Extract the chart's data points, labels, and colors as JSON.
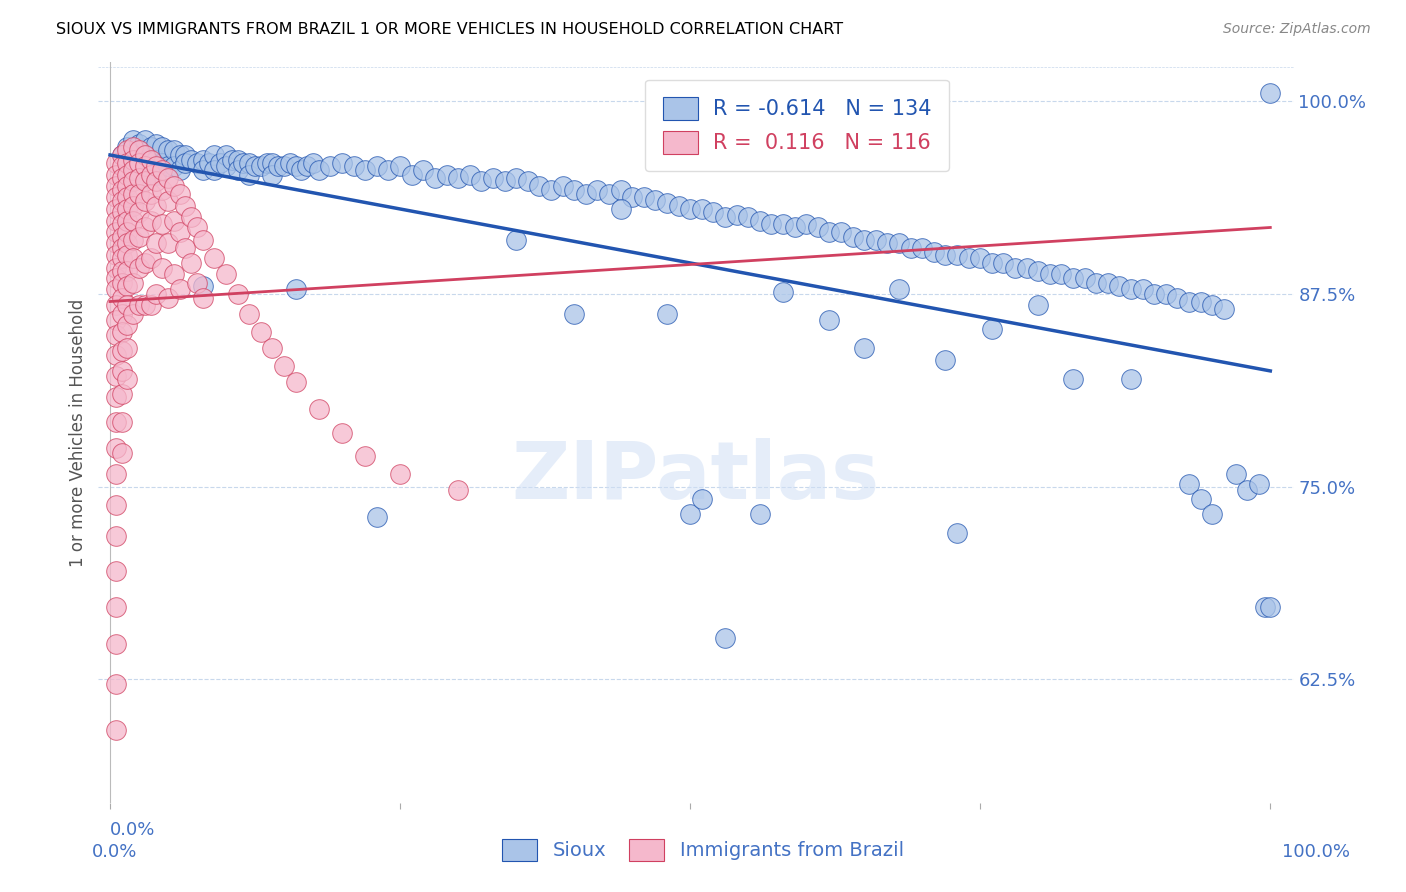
{
  "title": "SIOUX VS IMMIGRANTS FROM BRAZIL 1 OR MORE VEHICLES IN HOUSEHOLD CORRELATION CHART",
  "source": "Source: ZipAtlas.com",
  "ylabel": "1 or more Vehicles in Household",
  "legend_label1": "Sioux",
  "legend_label2": "Immigrants from Brazil",
  "R1": -0.614,
  "N1": 134,
  "R2": 0.116,
  "N2": 116,
  "watermark": "ZIPatlas",
  "xlim": [
    -0.01,
    1.02
  ],
  "ylim": [
    0.545,
    1.025
  ],
  "yticks": [
    0.625,
    0.75,
    0.875,
    1.0
  ],
  "ytick_labels": [
    "62.5%",
    "75.0%",
    "87.5%",
    "100.0%"
  ],
  "blue_color": "#aac4e8",
  "pink_color": "#f5b8cc",
  "trendline_blue": "#2255b0",
  "trendline_pink": "#d04060",
  "blue_scatter": [
    [
      0.01,
      0.965
    ],
    [
      0.015,
      0.97
    ],
    [
      0.02,
      0.975
    ],
    [
      0.02,
      0.96
    ],
    [
      0.025,
      0.972
    ],
    [
      0.025,
      0.958
    ],
    [
      0.03,
      0.975
    ],
    [
      0.03,
      0.965
    ],
    [
      0.03,
      0.95
    ],
    [
      0.035,
      0.97
    ],
    [
      0.035,
      0.96
    ],
    [
      0.04,
      0.972
    ],
    [
      0.04,
      0.962
    ],
    [
      0.04,
      0.952
    ],
    [
      0.045,
      0.97
    ],
    [
      0.045,
      0.96
    ],
    [
      0.05,
      0.968
    ],
    [
      0.05,
      0.958
    ],
    [
      0.055,
      0.968
    ],
    [
      0.055,
      0.958
    ],
    [
      0.06,
      0.965
    ],
    [
      0.06,
      0.955
    ],
    [
      0.065,
      0.965
    ],
    [
      0.065,
      0.96
    ],
    [
      0.07,
      0.962
    ],
    [
      0.075,
      0.96
    ],
    [
      0.08,
      0.962
    ],
    [
      0.08,
      0.955
    ],
    [
      0.085,
      0.96
    ],
    [
      0.09,
      0.965
    ],
    [
      0.09,
      0.955
    ],
    [
      0.095,
      0.96
    ],
    [
      0.1,
      0.965
    ],
    [
      0.1,
      0.958
    ],
    [
      0.105,
      0.962
    ],
    [
      0.11,
      0.962
    ],
    [
      0.11,
      0.955
    ],
    [
      0.115,
      0.96
    ],
    [
      0.12,
      0.96
    ],
    [
      0.12,
      0.952
    ],
    [
      0.125,
      0.958
    ],
    [
      0.13,
      0.958
    ],
    [
      0.135,
      0.96
    ],
    [
      0.14,
      0.96
    ],
    [
      0.14,
      0.952
    ],
    [
      0.145,
      0.958
    ],
    [
      0.15,
      0.958
    ],
    [
      0.155,
      0.96
    ],
    [
      0.16,
      0.958
    ],
    [
      0.165,
      0.955
    ],
    [
      0.17,
      0.958
    ],
    [
      0.175,
      0.96
    ],
    [
      0.18,
      0.955
    ],
    [
      0.19,
      0.958
    ],
    [
      0.2,
      0.96
    ],
    [
      0.21,
      0.958
    ],
    [
      0.22,
      0.955
    ],
    [
      0.23,
      0.958
    ],
    [
      0.24,
      0.955
    ],
    [
      0.25,
      0.958
    ],
    [
      0.26,
      0.952
    ],
    [
      0.27,
      0.955
    ],
    [
      0.28,
      0.95
    ],
    [
      0.29,
      0.952
    ],
    [
      0.3,
      0.95
    ],
    [
      0.31,
      0.952
    ],
    [
      0.32,
      0.948
    ],
    [
      0.33,
      0.95
    ],
    [
      0.34,
      0.948
    ],
    [
      0.35,
      0.95
    ],
    [
      0.36,
      0.948
    ],
    [
      0.37,
      0.945
    ],
    [
      0.38,
      0.942
    ],
    [
      0.39,
      0.945
    ],
    [
      0.4,
      0.942
    ],
    [
      0.41,
      0.94
    ],
    [
      0.42,
      0.942
    ],
    [
      0.43,
      0.94
    ],
    [
      0.44,
      0.942
    ],
    [
      0.45,
      0.938
    ],
    [
      0.46,
      0.938
    ],
    [
      0.47,
      0.936
    ],
    [
      0.48,
      0.934
    ],
    [
      0.49,
      0.932
    ],
    [
      0.5,
      0.93
    ],
    [
      0.51,
      0.93
    ],
    [
      0.52,
      0.928
    ],
    [
      0.53,
      0.925
    ],
    [
      0.54,
      0.926
    ],
    [
      0.55,
      0.925
    ],
    [
      0.56,
      0.922
    ],
    [
      0.57,
      0.92
    ],
    [
      0.58,
      0.92
    ],
    [
      0.59,
      0.918
    ],
    [
      0.6,
      0.92
    ],
    [
      0.61,
      0.918
    ],
    [
      0.62,
      0.915
    ],
    [
      0.63,
      0.915
    ],
    [
      0.64,
      0.912
    ],
    [
      0.65,
      0.91
    ],
    [
      0.66,
      0.91
    ],
    [
      0.67,
      0.908
    ],
    [
      0.68,
      0.908
    ],
    [
      0.69,
      0.905
    ],
    [
      0.7,
      0.905
    ],
    [
      0.71,
      0.902
    ],
    [
      0.72,
      0.9
    ],
    [
      0.73,
      0.9
    ],
    [
      0.74,
      0.898
    ],
    [
      0.75,
      0.898
    ],
    [
      0.76,
      0.895
    ],
    [
      0.77,
      0.895
    ],
    [
      0.78,
      0.892
    ],
    [
      0.79,
      0.892
    ],
    [
      0.8,
      0.89
    ],
    [
      0.81,
      0.888
    ],
    [
      0.82,
      0.888
    ],
    [
      0.83,
      0.885
    ],
    [
      0.84,
      0.885
    ],
    [
      0.85,
      0.882
    ],
    [
      0.86,
      0.882
    ],
    [
      0.87,
      0.88
    ],
    [
      0.88,
      0.878
    ],
    [
      0.89,
      0.878
    ],
    [
      0.9,
      0.875
    ],
    [
      0.91,
      0.875
    ],
    [
      0.92,
      0.872
    ],
    [
      0.93,
      0.87
    ],
    [
      0.94,
      0.87
    ],
    [
      0.95,
      0.868
    ],
    [
      0.96,
      0.865
    ],
    [
      0.08,
      0.88
    ],
    [
      0.16,
      0.878
    ],
    [
      0.23,
      0.73
    ],
    [
      0.35,
      0.91
    ],
    [
      0.4,
      0.862
    ],
    [
      0.44,
      0.93
    ],
    [
      0.48,
      0.862
    ],
    [
      0.5,
      0.732
    ],
    [
      0.51,
      0.742
    ],
    [
      0.53,
      0.652
    ],
    [
      0.56,
      0.732
    ],
    [
      0.58,
      0.876
    ],
    [
      0.62,
      0.858
    ],
    [
      0.65,
      0.84
    ],
    [
      0.68,
      0.878
    ],
    [
      0.72,
      0.832
    ],
    [
      0.73,
      0.72
    ],
    [
      0.76,
      0.852
    ],
    [
      0.8,
      0.868
    ],
    [
      0.83,
      0.82
    ],
    [
      0.88,
      0.82
    ],
    [
      0.93,
      0.752
    ],
    [
      0.94,
      0.742
    ],
    [
      0.95,
      0.732
    ],
    [
      0.97,
      0.758
    ],
    [
      0.98,
      0.748
    ],
    [
      0.99,
      0.752
    ],
    [
      0.995,
      0.672
    ],
    [
      1.0,
      0.672
    ],
    [
      1.0,
      1.005
    ]
  ],
  "pink_scatter": [
    [
      0.005,
      0.96
    ],
    [
      0.005,
      0.952
    ],
    [
      0.005,
      0.945
    ],
    [
      0.005,
      0.938
    ],
    [
      0.005,
      0.93
    ],
    [
      0.005,
      0.922
    ],
    [
      0.005,
      0.915
    ],
    [
      0.005,
      0.908
    ],
    [
      0.005,
      0.9
    ],
    [
      0.005,
      0.892
    ],
    [
      0.005,
      0.885
    ],
    [
      0.005,
      0.878
    ],
    [
      0.005,
      0.868
    ],
    [
      0.005,
      0.858
    ],
    [
      0.005,
      0.848
    ],
    [
      0.005,
      0.835
    ],
    [
      0.005,
      0.822
    ],
    [
      0.005,
      0.808
    ],
    [
      0.005,
      0.792
    ],
    [
      0.005,
      0.775
    ],
    [
      0.005,
      0.758
    ],
    [
      0.005,
      0.738
    ],
    [
      0.005,
      0.718
    ],
    [
      0.005,
      0.695
    ],
    [
      0.005,
      0.672
    ],
    [
      0.005,
      0.648
    ],
    [
      0.005,
      0.622
    ],
    [
      0.005,
      0.592
    ],
    [
      0.01,
      0.965
    ],
    [
      0.01,
      0.958
    ],
    [
      0.01,
      0.95
    ],
    [
      0.01,
      0.942
    ],
    [
      0.01,
      0.935
    ],
    [
      0.01,
      0.928
    ],
    [
      0.01,
      0.92
    ],
    [
      0.01,
      0.912
    ],
    [
      0.01,
      0.905
    ],
    [
      0.01,
      0.898
    ],
    [
      0.01,
      0.89
    ],
    [
      0.01,
      0.882
    ],
    [
      0.01,
      0.872
    ],
    [
      0.01,
      0.862
    ],
    [
      0.01,
      0.85
    ],
    [
      0.01,
      0.838
    ],
    [
      0.01,
      0.825
    ],
    [
      0.01,
      0.81
    ],
    [
      0.01,
      0.792
    ],
    [
      0.01,
      0.772
    ],
    [
      0.015,
      0.968
    ],
    [
      0.015,
      0.96
    ],
    [
      0.015,
      0.952
    ],
    [
      0.015,
      0.945
    ],
    [
      0.015,
      0.938
    ],
    [
      0.015,
      0.93
    ],
    [
      0.015,
      0.922
    ],
    [
      0.015,
      0.915
    ],
    [
      0.015,
      0.908
    ],
    [
      0.015,
      0.9
    ],
    [
      0.015,
      0.89
    ],
    [
      0.015,
      0.88
    ],
    [
      0.015,
      0.868
    ],
    [
      0.015,
      0.855
    ],
    [
      0.015,
      0.84
    ],
    [
      0.015,
      0.82
    ],
    [
      0.02,
      0.97
    ],
    [
      0.02,
      0.962
    ],
    [
      0.02,
      0.955
    ],
    [
      0.02,
      0.948
    ],
    [
      0.02,
      0.94
    ],
    [
      0.02,
      0.932
    ],
    [
      0.02,
      0.922
    ],
    [
      0.02,
      0.91
    ],
    [
      0.02,
      0.898
    ],
    [
      0.02,
      0.882
    ],
    [
      0.02,
      0.862
    ],
    [
      0.025,
      0.968
    ],
    [
      0.025,
      0.96
    ],
    [
      0.025,
      0.95
    ],
    [
      0.025,
      0.94
    ],
    [
      0.025,
      0.928
    ],
    [
      0.025,
      0.912
    ],
    [
      0.025,
      0.892
    ],
    [
      0.025,
      0.868
    ],
    [
      0.03,
      0.965
    ],
    [
      0.03,
      0.958
    ],
    [
      0.03,
      0.948
    ],
    [
      0.03,
      0.935
    ],
    [
      0.03,
      0.918
    ],
    [
      0.03,
      0.895
    ],
    [
      0.03,
      0.868
    ],
    [
      0.035,
      0.962
    ],
    [
      0.035,
      0.952
    ],
    [
      0.035,
      0.94
    ],
    [
      0.035,
      0.922
    ],
    [
      0.035,
      0.898
    ],
    [
      0.035,
      0.868
    ],
    [
      0.04,
      0.958
    ],
    [
      0.04,
      0.948
    ],
    [
      0.04,
      0.932
    ],
    [
      0.04,
      0.908
    ],
    [
      0.04,
      0.875
    ],
    [
      0.045,
      0.955
    ],
    [
      0.045,
      0.942
    ],
    [
      0.045,
      0.92
    ],
    [
      0.045,
      0.892
    ],
    [
      0.05,
      0.95
    ],
    [
      0.05,
      0.935
    ],
    [
      0.05,
      0.908
    ],
    [
      0.05,
      0.872
    ],
    [
      0.055,
      0.945
    ],
    [
      0.055,
      0.922
    ],
    [
      0.055,
      0.888
    ],
    [
      0.06,
      0.94
    ],
    [
      0.06,
      0.915
    ],
    [
      0.06,
      0.878
    ],
    [
      0.065,
      0.932
    ],
    [
      0.065,
      0.905
    ],
    [
      0.07,
      0.925
    ],
    [
      0.07,
      0.895
    ],
    [
      0.075,
      0.918
    ],
    [
      0.075,
      0.882
    ],
    [
      0.08,
      0.91
    ],
    [
      0.08,
      0.872
    ],
    [
      0.09,
      0.898
    ],
    [
      0.1,
      0.888
    ],
    [
      0.11,
      0.875
    ],
    [
      0.12,
      0.862
    ],
    [
      0.13,
      0.85
    ],
    [
      0.14,
      0.84
    ],
    [
      0.15,
      0.828
    ],
    [
      0.16,
      0.818
    ],
    [
      0.18,
      0.8
    ],
    [
      0.2,
      0.785
    ],
    [
      0.22,
      0.77
    ],
    [
      0.25,
      0.758
    ],
    [
      0.3,
      0.748
    ]
  ],
  "blue_trend_x": [
    0.0,
    1.0
  ],
  "blue_trend_y": [
    0.965,
    0.825
  ],
  "pink_trend_x": [
    0.0,
    1.0
  ],
  "pink_trend_y": [
    0.87,
    0.918
  ]
}
